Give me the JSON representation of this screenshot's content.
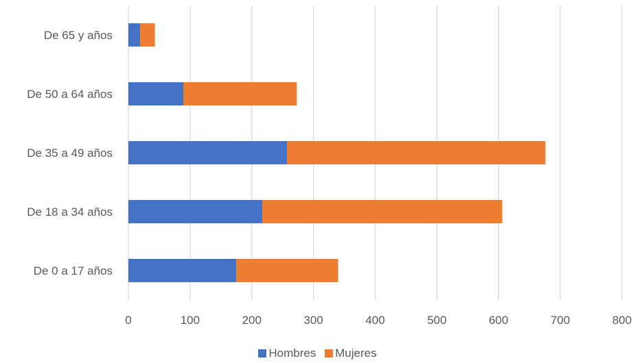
{
  "chart_data": {
    "type": "bar",
    "orientation": "horizontal",
    "stacked": true,
    "categories": [
      "De 0 a 17 años",
      "De 18 a 34 años",
      "De 35 a 49 años",
      "De 50 a 64 años",
      "De 65 y años"
    ],
    "series": [
      {
        "name": "Hombres",
        "color": "#4472C4",
        "values": [
          175,
          217,
          257,
          89,
          19
        ]
      },
      {
        "name": "Mujeres",
        "color": "#ED7D31",
        "values": [
          165,
          389,
          419,
          184,
          24
        ]
      }
    ],
    "xlim": [
      0,
      800
    ],
    "xticks": [
      "0",
      "100",
      "200",
      "300",
      "400",
      "500",
      "600",
      "700",
      "800"
    ],
    "grid": "vertical",
    "legend_position": "bottom"
  }
}
